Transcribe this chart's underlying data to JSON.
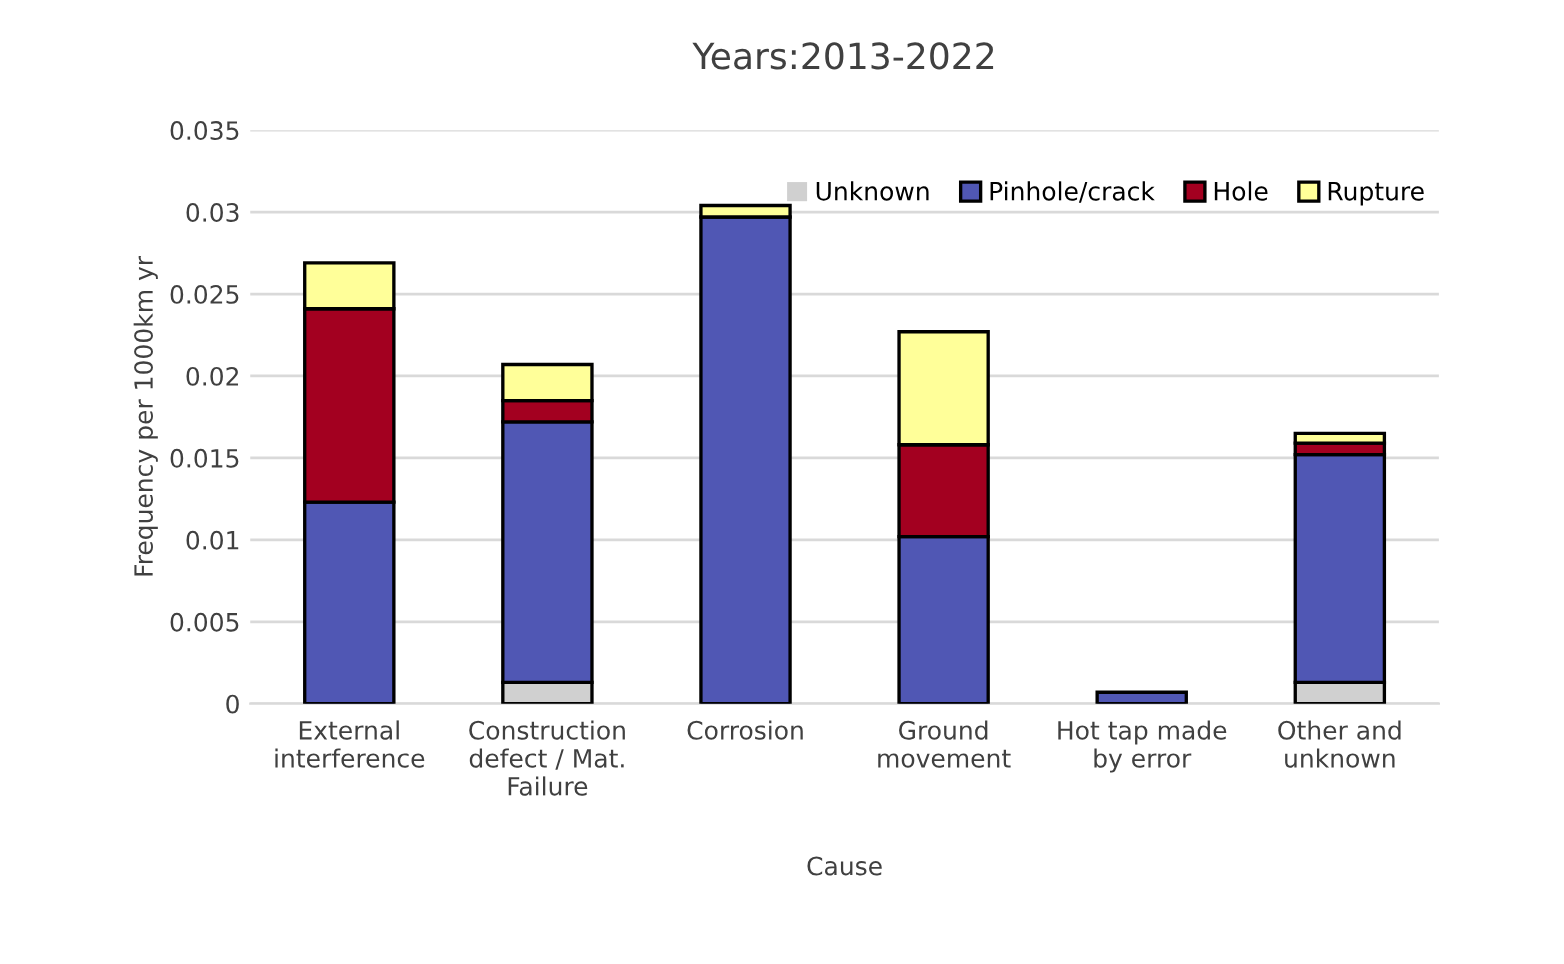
{
  "chart_data": {
    "type": "bar",
    "title": "Years:2013-2022",
    "xlabel": "Cause",
    "ylabel": "Frequency per 1000km yr",
    "categories": [
      "External interference",
      "Construction defect / Mat. Failure",
      "Corrosion",
      "Ground movement",
      "Hot tap made by error",
      "Other and unknown"
    ],
    "stacked": true,
    "series": [
      {
        "name": "Unknown",
        "color": "#d0d0d0",
        "values": [
          0,
          0.0013,
          0,
          0,
          0,
          0.0013
        ]
      },
      {
        "name": "Pinhole/crack",
        "color": "#5057b4",
        "values": [
          0.0123,
          0.0159,
          0.0297,
          0.0102,
          0.0007,
          0.0139
        ]
      },
      {
        "name": "Hole",
        "color": "#a30020",
        "values": [
          0.0118,
          0.0013,
          0,
          0.0056,
          0,
          0.0007
        ]
      },
      {
        "name": "Rupture",
        "color": "#ffff99",
        "values": [
          0.0028,
          0.0022,
          0.0007,
          0.0069,
          0,
          0.0006
        ]
      }
    ],
    "ylim": [
      0,
      0.035
    ],
    "yticks": [
      0,
      0.005,
      0.01,
      0.015,
      0.02,
      0.025,
      0.03,
      0.035
    ],
    "grid": "y",
    "legend": "top"
  }
}
